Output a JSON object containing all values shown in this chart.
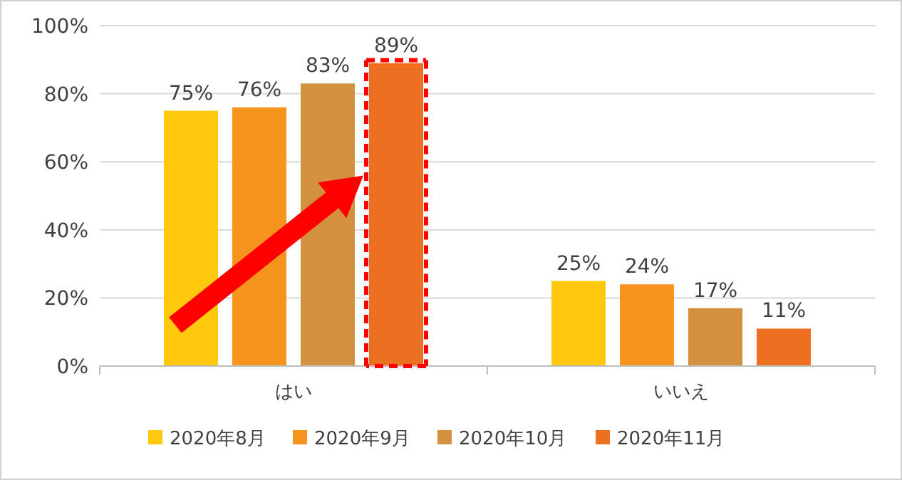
{
  "chart_data": {
    "type": "bar",
    "categories": [
      "はい",
      "いいえ"
    ],
    "series": [
      {
        "name": "2020年8月",
        "color": "#ffc90e",
        "values": [
          75,
          25
        ],
        "value_labels": [
          "75%",
          "25%"
        ]
      },
      {
        "name": "2020年9月",
        "color": "#f7941d",
        "values": [
          76,
          24
        ],
        "value_labels": [
          "76%",
          "24%"
        ]
      },
      {
        "name": "2020年10月",
        "color": "#d39140",
        "values": [
          83,
          17
        ],
        "value_labels": [
          "83%",
          "17%"
        ]
      },
      {
        "name": "2020年11月",
        "color": "#ed7020",
        "values": [
          89,
          11
        ],
        "value_labels": [
          "89%",
          "11%"
        ]
      }
    ],
    "ylim": [
      0,
      100
    ],
    "yticks": [
      {
        "value": 0,
        "label": "0%"
      },
      {
        "value": 20,
        "label": "20%"
      },
      {
        "value": 40,
        "label": "40%"
      },
      {
        "value": 60,
        "label": "60%"
      },
      {
        "value": 80,
        "label": "80%"
      },
      {
        "value": 100,
        "label": "100%"
      }
    ],
    "grid": "y",
    "legend": "bottom"
  }
}
